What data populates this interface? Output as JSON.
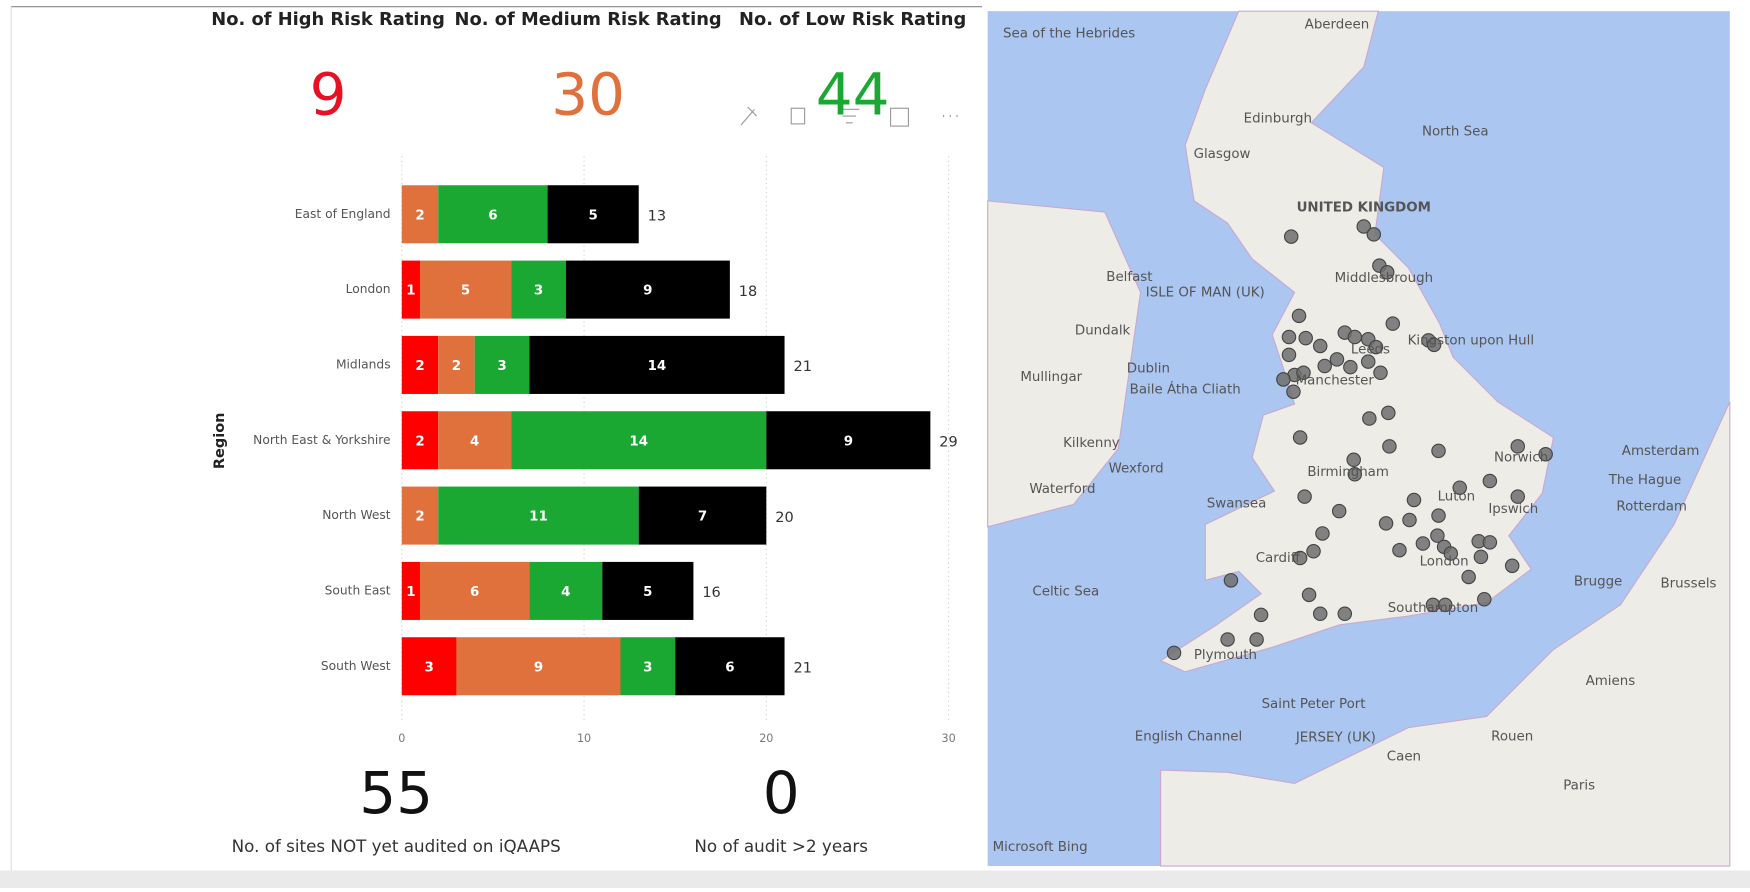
{
  "cards": [
    {
      "title": "No. of High Risk Rating",
      "value": "9",
      "color": "#e81123"
    },
    {
      "title": "No. of Medium Risk Rating",
      "value": "30",
      "color": "#e0703c"
    },
    {
      "title": "No. of Low Risk Rating",
      "value": "44",
      "color": "#1aa832"
    }
  ],
  "bottom_cards": [
    {
      "value": "55",
      "label": "No. of sites NOT yet audited on iQAAPS"
    },
    {
      "value": "0",
      "label": "No of audit >2 years"
    }
  ],
  "chart_data": {
    "type": "stacked-barh",
    "y_label": "Region",
    "categories": [
      "East of England",
      "London",
      "Midlands",
      "North East & Yorkshire",
      "North West",
      "South East",
      "South West"
    ],
    "series": [
      {
        "color": "#ff0000",
        "values": [
          null,
          1,
          2,
          2,
          null,
          1,
          3
        ]
      },
      {
        "color": "#e0703c",
        "values": [
          2,
          5,
          2,
          4,
          2,
          6,
          9
        ]
      },
      {
        "color": "#1aa832",
        "values": [
          6,
          3,
          3,
          14,
          11,
          4,
          3
        ]
      },
      {
        "color": "#000000",
        "values": [
          5,
          9,
          14,
          9,
          7,
          5,
          6
        ]
      }
    ],
    "totals": [
      13,
      18,
      21,
      29,
      20,
      16,
      21
    ],
    "xlim": [
      0,
      30
    ],
    "xticks": [
      0,
      10,
      20,
      30
    ],
    "grid": true
  },
  "map": {
    "labels": [
      "Aberdeen",
      "Sea of the Hebrides",
      "Edinburgh",
      "Glasgow",
      "North Sea",
      "UNITED KINGDOM",
      "Middlesbrough",
      "Belfast",
      "ISLE OF MAN (UK)",
      "Dundalk",
      "Dublin",
      "Baile Átha Cliath",
      "Mullingar",
      "Kingston upon Hull",
      "Leeds",
      "Manchester",
      "Kilkenny",
      "Wexford",
      "Waterford",
      "Birmingham",
      "Norwich",
      "Amsterdam",
      "The Hague",
      "Rotterdam",
      "Swansea",
      "Cardiff",
      "Luton",
      "Ipswich",
      "London",
      "Celtic Sea",
      "Southampton",
      "Plymouth",
      "Brugge",
      "Brussels",
      "Saint Peter Port",
      "English Channel",
      "JERSEY (UK)",
      "Rouen",
      "Caen",
      "Amiens",
      "Paris",
      "Microsoft Bing"
    ]
  }
}
